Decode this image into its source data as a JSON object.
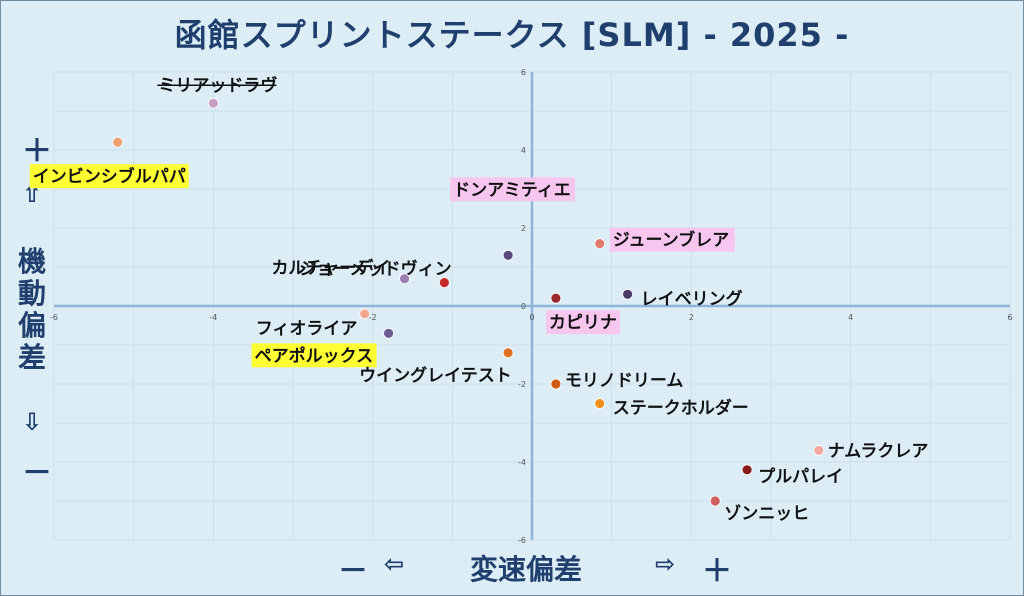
{
  "title": "函館スプリントステークス [SLM]  - 2025 -",
  "axis_labels": {
    "y_title": "機動偏差",
    "x_title": "変速偏差",
    "y_plus": "＋",
    "y_plus_arrow": "⇧",
    "y_minus_arrow": "⇩",
    "y_minus": "－",
    "x_minus": "－",
    "x_minus_arrow": "⇦",
    "x_plus_arrow": "⇨",
    "x_plus": "＋"
  },
  "chart_data": {
    "type": "scatter",
    "xlim": [
      -6,
      6
    ],
    "ylim": [
      -6,
      6
    ],
    "grid": true,
    "x_ticks": [
      -6,
      -4,
      -2,
      0,
      2,
      4,
      6
    ],
    "y_ticks": [
      -6,
      -4,
      -2,
      0,
      2,
      4,
      6
    ],
    "x_tick_labels": [
      "-6",
      "-4",
      "-2",
      "0",
      "2",
      "4",
      "6"
    ],
    "y_tick_labels": [
      "-6",
      "-4",
      "-2",
      "0",
      "2",
      "4",
      "6"
    ],
    "points": [
      {
        "label": "ミリアッドラヴ",
        "x": -4.0,
        "y": 5.2,
        "color": "#c9a0c4",
        "highlight": "",
        "strike": true
      },
      {
        "label": "インビンシブルパパ",
        "x": -5.2,
        "y": 4.2,
        "color": "#f0a070",
        "highlight": "#ffff33",
        "strike": false
      },
      {
        "label": "ドンアミティエ",
        "x": -0.3,
        "y": 1.3,
        "color": "#5a4c7e",
        "highlight": "#f7c6ef",
        "strike": false
      },
      {
        "label": "ジューンブレア",
        "x": 0.85,
        "y": 1.6,
        "color": "#e07a6a",
        "highlight": "#f7c6ef",
        "strike": false
      },
      {
        "label": "カルチャーデイ",
        "x": -1.6,
        "y": 0.7,
        "color": "#9b7eb0",
        "highlight": "",
        "strike": false
      },
      {
        "label": "ジョーメッドヴィン",
        "x": -1.1,
        "y": 0.6,
        "color": "#c8282a",
        "highlight": "",
        "strike": false
      },
      {
        "label": "カピリナ",
        "x": 0.3,
        "y": 0.2,
        "color": "#9b2a2a",
        "highlight": "#f7c6ef",
        "strike": false
      },
      {
        "label": "レイベリング",
        "x": 1.2,
        "y": 0.3,
        "color": "#4a3a6a",
        "highlight": "",
        "strike": false
      },
      {
        "label": "フィオライア",
        "x": -2.1,
        "y": -0.2,
        "color": "#f0a890",
        "highlight": "",
        "strike": false
      },
      {
        "label": "ペアポルックス",
        "x": -1.8,
        "y": -0.7,
        "color": "#6a5a90",
        "highlight": "#ffff33",
        "strike": false
      },
      {
        "label": "ウイングレイテスト",
        "x": -0.3,
        "y": -1.2,
        "color": "#e07020",
        "highlight": "",
        "strike": false
      },
      {
        "label": "モリノドリーム",
        "x": 0.3,
        "y": -2.0,
        "color": "#d05a10",
        "highlight": "",
        "strike": false
      },
      {
        "label": "ステークホルダー",
        "x": 0.85,
        "y": -2.5,
        "color": "#f09020",
        "highlight": "",
        "strike": false
      },
      {
        "label": "ナムラクレア",
        "x": 3.6,
        "y": -3.7,
        "color": "#f5a8a0",
        "highlight": "",
        "strike": false
      },
      {
        "label": "プルパレイ",
        "x": 2.7,
        "y": -4.2,
        "color": "#8a1c1c",
        "highlight": "",
        "strike": false
      },
      {
        "label": "ゾンニッヒ",
        "x": 2.3,
        "y": -5.0,
        "color": "#d06060",
        "highlight": "",
        "strike": false
      }
    ]
  }
}
